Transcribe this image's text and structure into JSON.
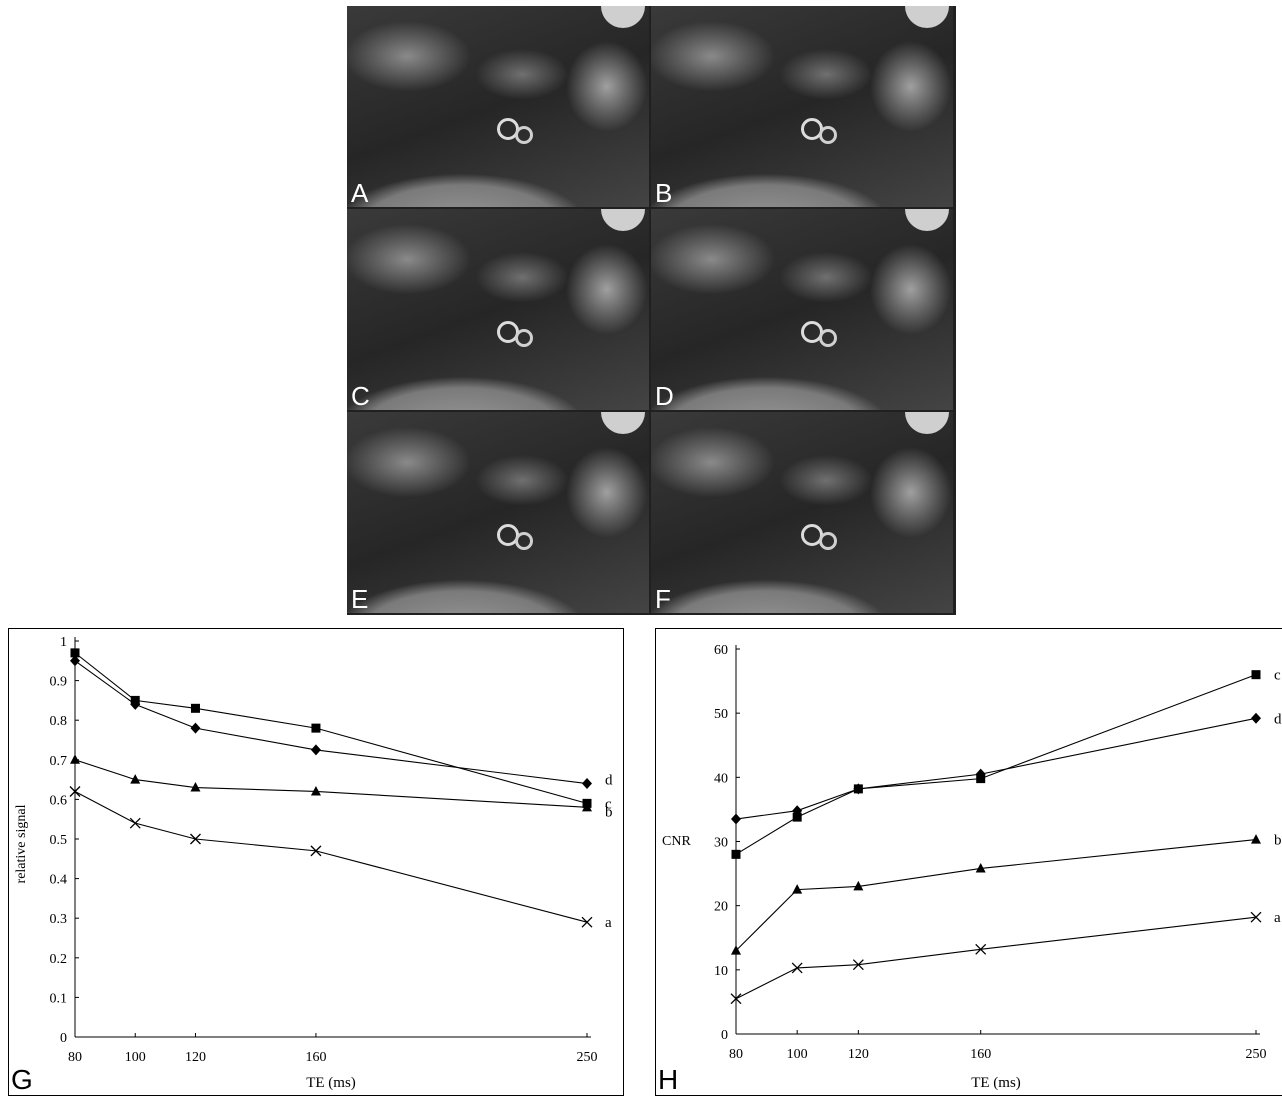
{
  "images": {
    "panels": [
      {
        "label": "A"
      },
      {
        "label": "B"
      },
      {
        "label": "C"
      },
      {
        "label": "D"
      },
      {
        "label": "E"
      },
      {
        "label": "F"
      }
    ]
  },
  "chart_data": [
    {
      "type": "line",
      "panel_label": "G",
      "xlabel": "TE (ms)",
      "ylabel": "relative signal",
      "x_ticks": [
        "80",
        "100",
        "120",
        "160",
        "250"
      ],
      "y_ticks": [
        "0",
        "0.1",
        "0.2",
        "0.3",
        "0.4",
        "0.5",
        "0.6",
        "0.7",
        "0.8",
        "0.9",
        "1"
      ],
      "ylim": [
        0,
        1
      ],
      "x_scale": "categorical-spaced",
      "series": [
        {
          "name": "a",
          "marker": "x",
          "values": [
            0.62,
            0.54,
            0.5,
            0.47,
            0.29
          ]
        },
        {
          "name": "b",
          "marker": "triangle",
          "values": [
            0.7,
            0.65,
            0.63,
            0.62,
            0.58
          ]
        },
        {
          "name": "c",
          "marker": "square",
          "values": [
            0.97,
            0.85,
            0.83,
            0.78,
            0.59
          ]
        },
        {
          "name": "d",
          "marker": "diamond",
          "values": [
            0.95,
            0.84,
            0.78,
            0.725,
            0.64
          ]
        }
      ]
    },
    {
      "type": "line",
      "panel_label": "H",
      "xlabel": "TE (ms)",
      "ylabel": "CNR",
      "x_ticks": [
        "80",
        "100",
        "120",
        "160",
        "250"
      ],
      "y_ticks": [
        "0",
        "10",
        "20",
        "30",
        "40",
        "50",
        "60"
      ],
      "ylim": [
        0,
        60
      ],
      "x_scale": "categorical-spaced",
      "series": [
        {
          "name": "a",
          "marker": "x",
          "values": [
            5.5,
            10.3,
            10.8,
            13.2,
            18.2
          ]
        },
        {
          "name": "b",
          "marker": "triangle",
          "values": [
            13,
            22.5,
            23,
            25.8,
            30.3
          ]
        },
        {
          "name": "c",
          "marker": "square",
          "values": [
            28,
            33.8,
            38.2,
            39.8,
            56
          ]
        },
        {
          "name": "d",
          "marker": "diamond",
          "values": [
            33.5,
            34.8,
            38.2,
            40.5,
            49.2
          ]
        }
      ]
    }
  ]
}
